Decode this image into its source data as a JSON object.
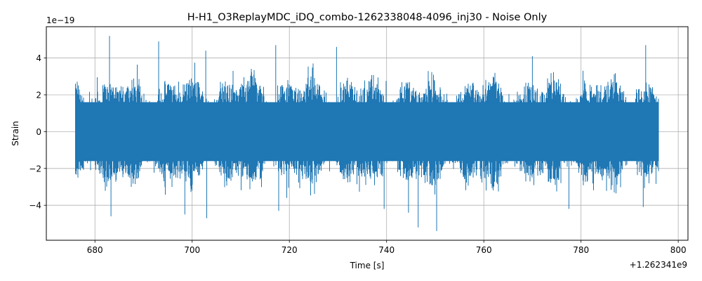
{
  "chart_data": {
    "type": "line",
    "title": "H-H1_O3ReplayMDC_iDQ_combo-1262338048-4096_inj30 - Noise Only",
    "xlabel": "Time [s]",
    "ylabel": "Strain",
    "x_offset_label": "+1.262341e9",
    "y_scale_label": "1e−19",
    "xlim": [
      670,
      802
    ],
    "ylim": [
      -5.9,
      5.7
    ],
    "x_range": [
      676,
      796
    ],
    "x_ticks": [
      680,
      700,
      720,
      740,
      760,
      780,
      800
    ],
    "x_tick_labels": [
      "680",
      "700",
      "720",
      "740",
      "760",
      "780",
      "800"
    ],
    "y_ticks": [
      -4,
      -2,
      0,
      2,
      4
    ],
    "y_tick_labels": [
      "−4",
      "−2",
      "0",
      "2",
      "4"
    ],
    "grid": true,
    "series": [
      {
        "color": "#1f77b4",
        "typical_amplitude": 2.2,
        "peaks": [
          {
            "x": 683.0,
            "y": 5.2
          },
          {
            "x": 683.3,
            "y": -4.6
          },
          {
            "x": 693.1,
            "y": 4.9
          },
          {
            "x": 698.5,
            "y": -4.5
          },
          {
            "x": 702.8,
            "y": 4.4
          },
          {
            "x": 703.0,
            "y": -4.7
          },
          {
            "x": 717.2,
            "y": 4.7
          },
          {
            "x": 717.8,
            "y": -4.3
          },
          {
            "x": 729.7,
            "y": 4.6
          },
          {
            "x": 739.5,
            "y": -4.2
          },
          {
            "x": 744.5,
            "y": -4.4
          },
          {
            "x": 746.5,
            "y": -5.2
          },
          {
            "x": 750.3,
            "y": -5.4
          },
          {
            "x": 770.0,
            "y": 4.1
          },
          {
            "x": 777.5,
            "y": -4.2
          },
          {
            "x": 792.8,
            "y": -4.1
          },
          {
            "x": 793.3,
            "y": 4.7
          }
        ]
      }
    ]
  }
}
